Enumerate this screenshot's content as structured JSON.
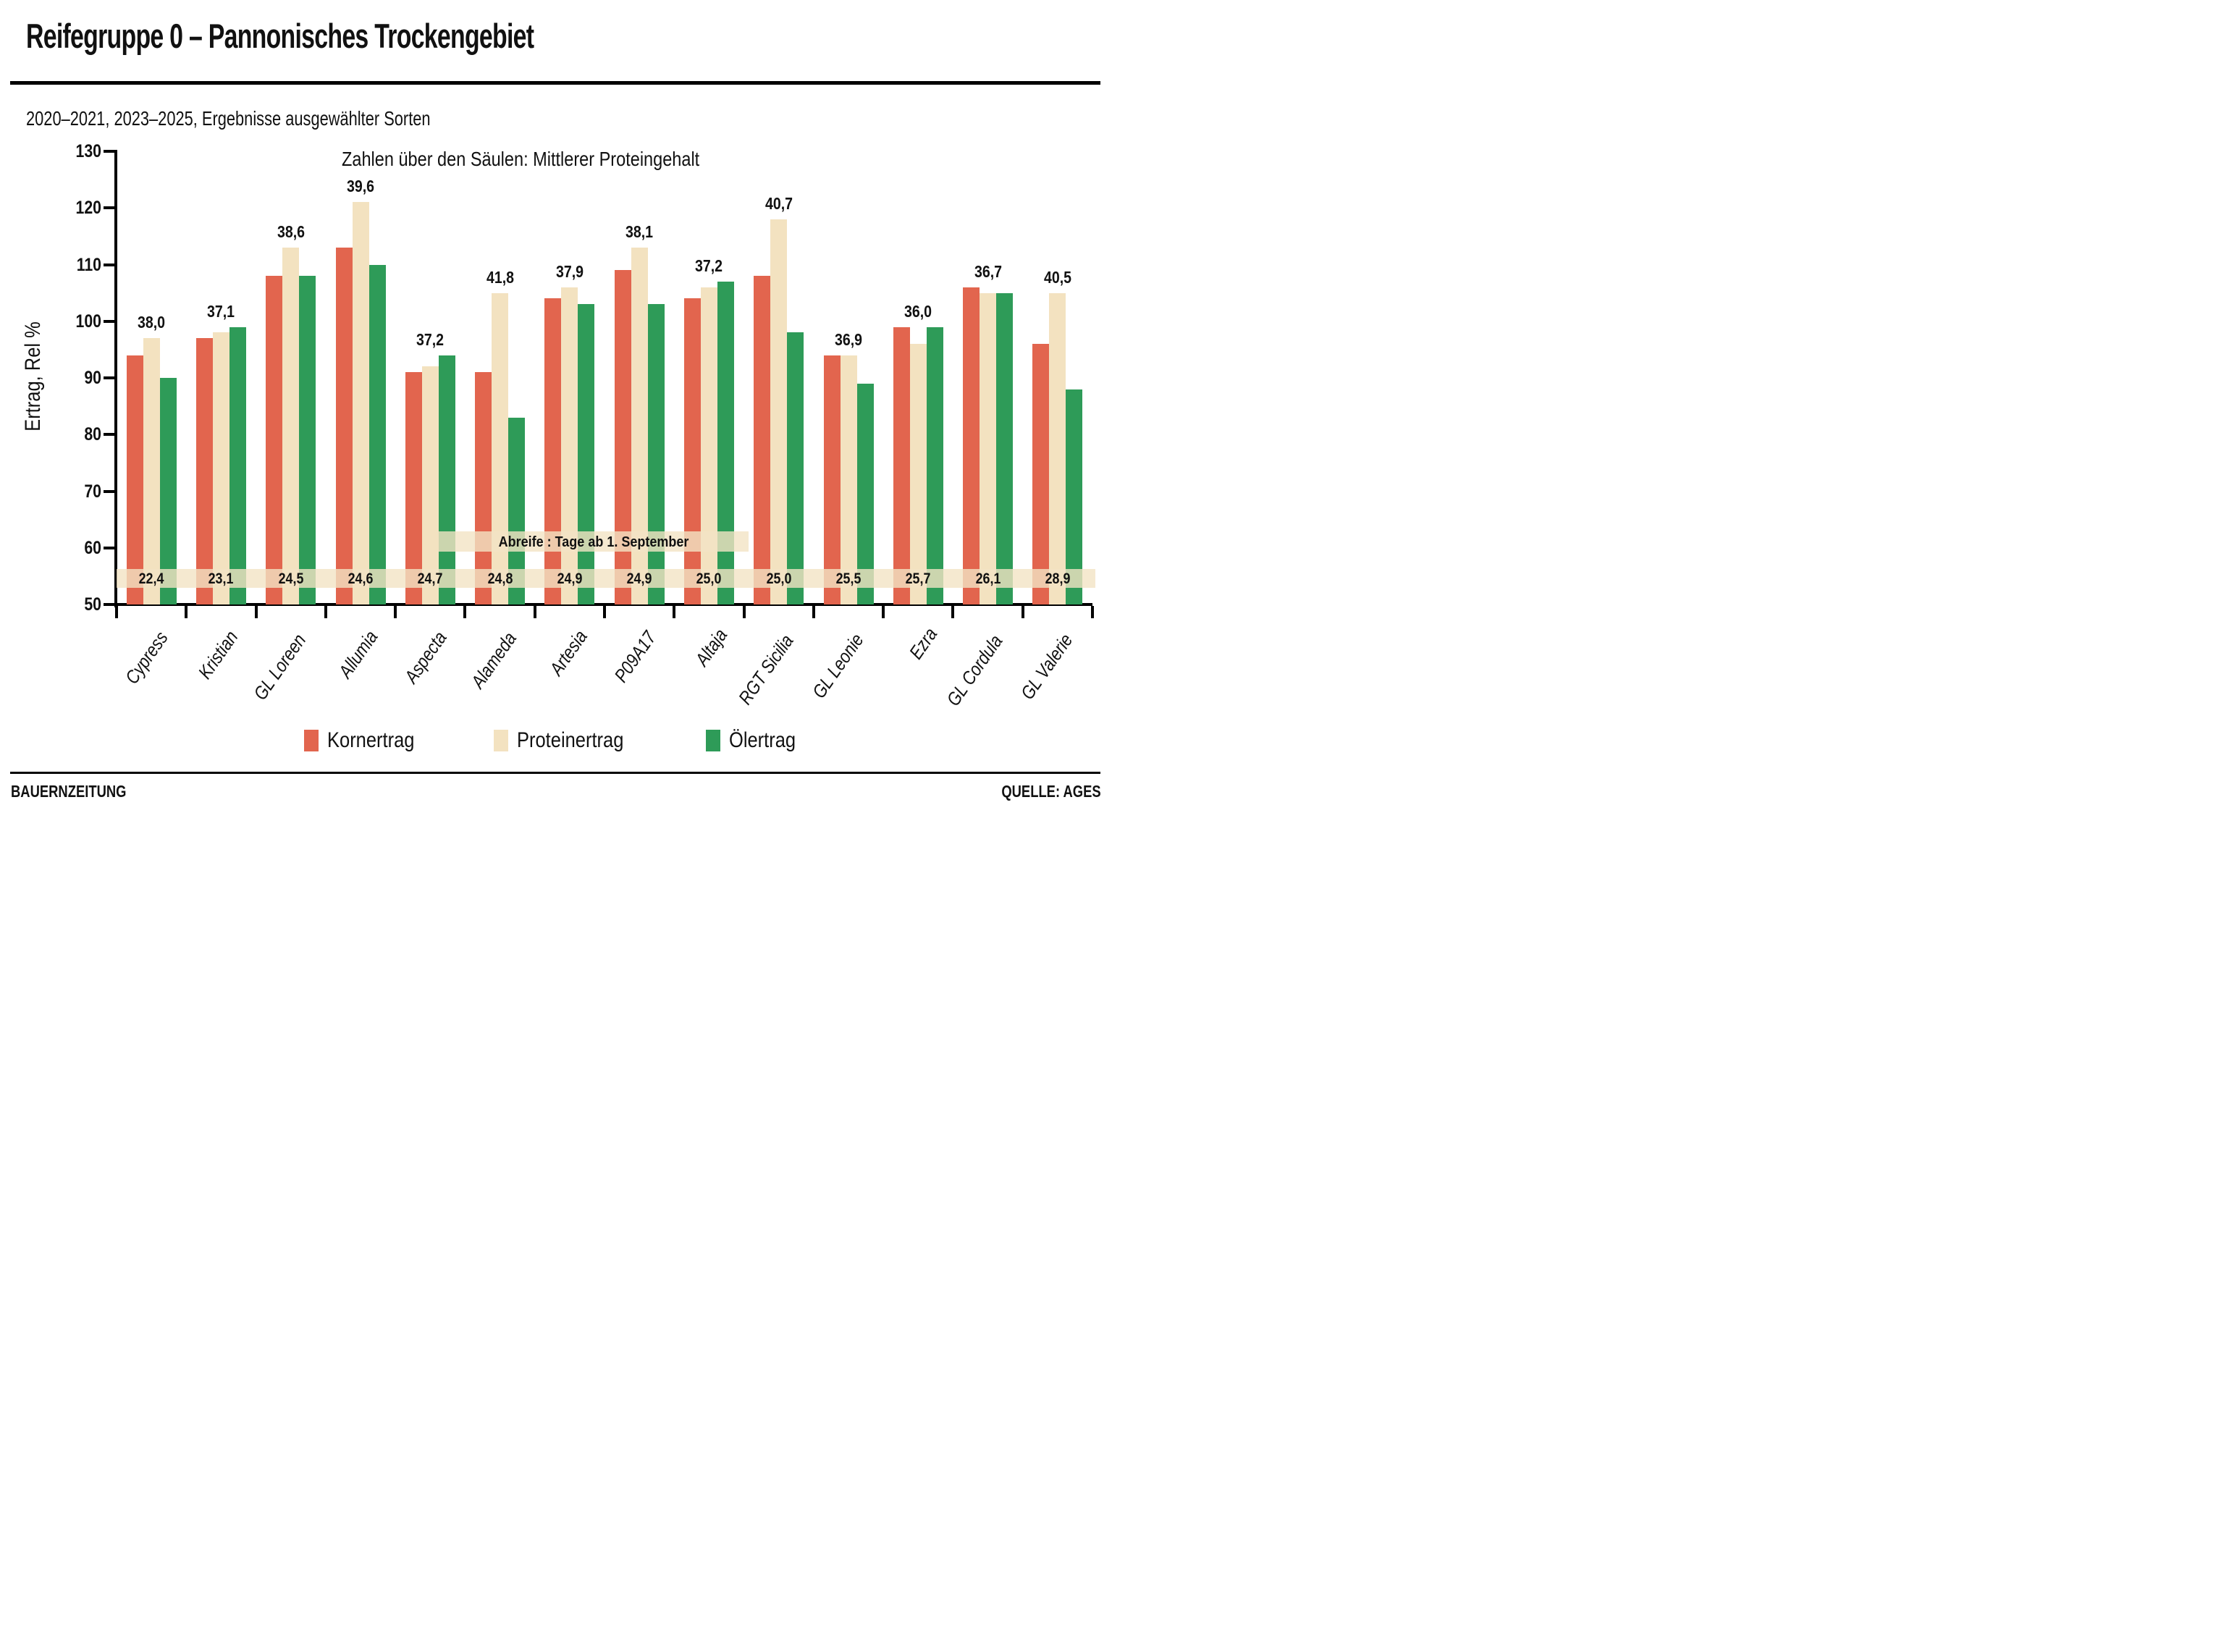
{
  "header": {
    "title": "Reifegruppe 0 – Pannonisches Trockengebiet",
    "subtitle": "2020–2021, 2023–2025, Ergebnisse ausgewählter Sorten"
  },
  "footer": {
    "left": "BAUERNZEITUNG",
    "right": "QUELLE: AGES"
  },
  "chart_data": {
    "type": "bar",
    "annotation": "Zahlen über den Säulen: Mittlerer Proteingehalt",
    "ylabel": "Ertrag, Rel %",
    "ylim": [
      50,
      130
    ],
    "yticks": [
      50,
      60,
      70,
      80,
      90,
      100,
      110,
      120,
      130
    ],
    "grid": false,
    "legend_position": "bottom",
    "categories": [
      "Cypress",
      "Kristian",
      "GL Loreen",
      "Allumia",
      "Aspecta",
      "Alameda",
      "Artesia",
      "P09A17",
      "Altaja",
      "RGT Sicilia",
      "GL Leonie",
      "Ezra",
      "GL Cordula",
      "GL Valerie"
    ],
    "series": [
      {
        "name": "Kornertrag",
        "color": "#e2654e",
        "values": [
          94,
          97,
          108,
          113,
          91,
          91,
          104,
          109,
          104,
          108,
          94,
          99,
          106,
          96
        ]
      },
      {
        "name": "Proteinertrag",
        "color": "#f3e2c0",
        "values": [
          97,
          98,
          113,
          121,
          92,
          105,
          106,
          113,
          106,
          118,
          94,
          96,
          105,
          105
        ]
      },
      {
        "name": "Ölertrag",
        "color": "#2e9b58",
        "values": [
          90,
          99,
          108,
          110,
          94,
          83,
          103,
          103,
          107,
          98,
          89,
          99,
          105,
          88
        ]
      }
    ],
    "protein_labels": [
      "38,0",
      "37,1",
      "38,6",
      "39,6",
      "37,2",
      "41,8",
      "37,9",
      "38,1",
      "37,2",
      "40,7",
      "36,9",
      "36,0",
      "36,7",
      "40,5"
    ],
    "abreife": {
      "label": "Abreife : Tage ab 1. September",
      "values": [
        "22,4",
        "23,1",
        "24,5",
        "24,6",
        "24,7",
        "24,8",
        "24,9",
        "24,9",
        "25,0",
        "25,0",
        "25,5",
        "25,7",
        "26,1",
        "28,9"
      ]
    }
  }
}
